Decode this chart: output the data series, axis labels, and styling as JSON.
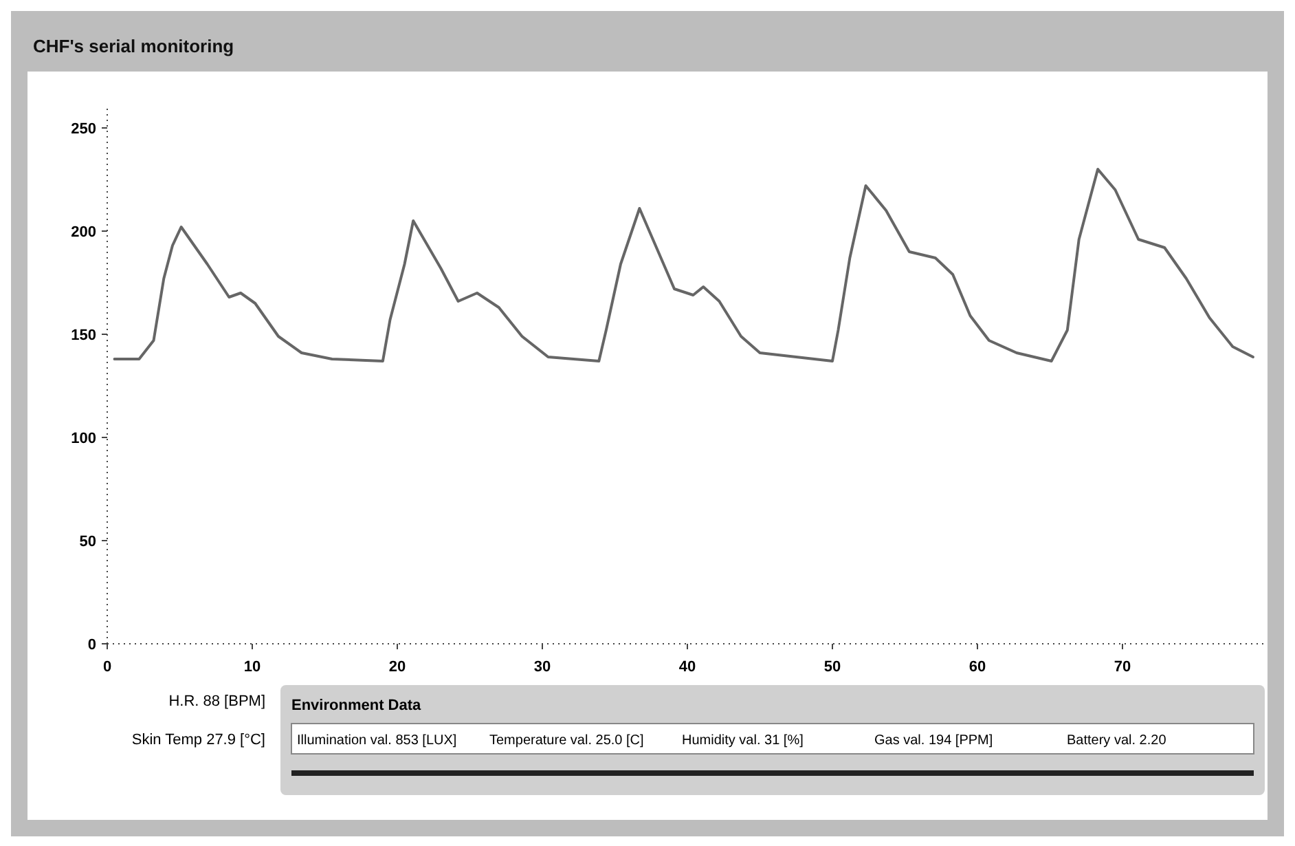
{
  "chart_data": {
    "type": "line",
    "title": "CHF's serial monitoring",
    "x": [
      0.5,
      2.2,
      3.2,
      3.9,
      4.5,
      5.1,
      6.9,
      8.4,
      9.2,
      10.2,
      11.8,
      13.4,
      15.5,
      19,
      19.5,
      20.5,
      21.1,
      23,
      24.2,
      25.5,
      27,
      28.6,
      30.4,
      33.9,
      34.4,
      35.4,
      36.7,
      39.1,
      40.4,
      41.1,
      42.2,
      43.7,
      45,
      50,
      50.4,
      51.2,
      52.3,
      53.7,
      55.3,
      57.1,
      58.3,
      59.5,
      60.8,
      62.7,
      65.1,
      66.2,
      67,
      68.3,
      69.5,
      71.1,
      72.9,
      74.4,
      76,
      77.6,
      79
    ],
    "series": [
      {
        "color": "#666666",
        "values": [
          138,
          138,
          147,
          177,
          193,
          202,
          184,
          168,
          170,
          165,
          149,
          141,
          138,
          137,
          157,
          184,
          205,
          182,
          166,
          170,
          163,
          149,
          139,
          137,
          152,
          184,
          211,
          172,
          169,
          173,
          166,
          149,
          141,
          137,
          152,
          187,
          222,
          210,
          190,
          187,
          179,
          159,
          147,
          141,
          137,
          152,
          196,
          230,
          220,
          196,
          192,
          177,
          158,
          144,
          139
        ]
      }
    ],
    "xlim": [
      0,
      80
    ],
    "xticks": [
      0,
      10,
      20,
      30,
      40,
      50,
      60,
      70
    ],
    "ylim": [
      0,
      260
    ],
    "yticks": [
      0,
      50,
      100,
      150,
      200,
      250
    ],
    "marker": "none",
    "line_style": "solid",
    "annotations": [
      "H.R. 88 [BPM]",
      "Skin Temp 27.9 [°C]",
      "Environment Data",
      "Illumination val. 853 [LUX]",
      "Temperature val. 25.0 [C]",
      "Humidity val. 31 [%]",
      "Gas val. 194 [PPM]",
      "Battery val. 2.20"
    ]
  }
}
